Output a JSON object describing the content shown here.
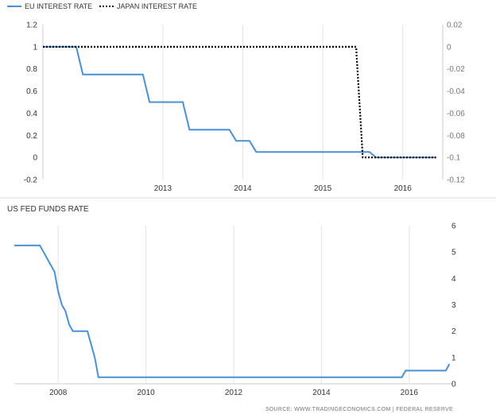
{
  "colors": {
    "eu": "#4a90d9",
    "japan": "#000000",
    "fed": "#4a90d9",
    "grid": "#e3e3e3",
    "border": "#cccccc"
  },
  "source": "SOURCE: WWW.TRADINGECONOMICS.COM | FEDERAL RESERVE",
  "chart_data": [
    {
      "type": "line",
      "title": "",
      "legend_position": "top-left",
      "grid": true,
      "x_ticks": [
        "2013",
        "2014",
        "2015",
        "2016"
      ],
      "y_left": {
        "range": [
          -0.2,
          1.2
        ],
        "ticks": [
          "1.2",
          "1",
          "0.8",
          "0.6",
          "0.4",
          "0.2",
          "0",
          "-0.2"
        ]
      },
      "y_right": {
        "range": [
          -0.12,
          0.02
        ],
        "ticks": [
          "0.02",
          "0",
          "-0.02",
          "-0.04",
          "-0.06",
          "-0.08",
          "-0.1",
          "-0.12"
        ]
      },
      "series": [
        {
          "name": "EU INTEREST RATE",
          "axis": "left",
          "style": "solid",
          "points": [
            [
              "2012-01",
              1.0
            ],
            [
              "2012-06",
              1.0
            ],
            [
              "2012-07",
              0.75
            ],
            [
              "2013-04",
              0.75
            ],
            [
              "2013-05",
              0.5
            ],
            [
              "2013-10",
              0.5
            ],
            [
              "2013-11",
              0.25
            ],
            [
              "2014-05",
              0.25
            ],
            [
              "2014-06",
              0.15
            ],
            [
              "2014-08",
              0.15
            ],
            [
              "2014-09",
              0.05
            ],
            [
              "2016-02",
              0.05
            ],
            [
              "2016-03",
              0.0
            ],
            [
              "2016-12",
              0.0
            ]
          ]
        },
        {
          "name": "JAPAN INTEREST RATE",
          "axis": "right",
          "style": "dotted",
          "points": [
            [
              "2012-01",
              0.0
            ],
            [
              "2015-12",
              0.0
            ],
            [
              "2016-01",
              -0.1
            ],
            [
              "2016-12",
              -0.1
            ]
          ]
        }
      ]
    },
    {
      "type": "line",
      "title": "US FED FUNDS RATE",
      "grid": true,
      "x_ticks": [
        "2008",
        "2010",
        "2012",
        "2014",
        "2016"
      ],
      "y_right": {
        "range": [
          0,
          6
        ],
        "ticks": [
          "6",
          "5",
          "4",
          "3",
          "2",
          "1",
          "0"
        ]
      },
      "series": [
        {
          "name": "",
          "style": "solid",
          "points": [
            [
              "2007-01",
              5.25
            ],
            [
              "2007-08",
              5.25
            ],
            [
              "2007-09",
              5.0
            ],
            [
              "2007-10",
              4.75
            ],
            [
              "2007-11",
              4.5
            ],
            [
              "2007-12",
              4.25
            ],
            [
              "2008-01",
              3.5
            ],
            [
              "2008-02",
              3.0
            ],
            [
              "2008-03",
              2.75
            ],
            [
              "2008-04",
              2.25
            ],
            [
              "2008-05",
              2.0
            ],
            [
              "2008-09",
              2.0
            ],
            [
              "2008-10",
              1.5
            ],
            [
              "2008-11",
              1.0
            ],
            [
              "2008-12",
              0.25
            ],
            [
              "2015-11",
              0.25
            ],
            [
              "2015-12",
              0.5
            ],
            [
              "2016-11",
              0.5
            ],
            [
              "2016-12",
              0.75
            ]
          ]
        }
      ]
    }
  ]
}
